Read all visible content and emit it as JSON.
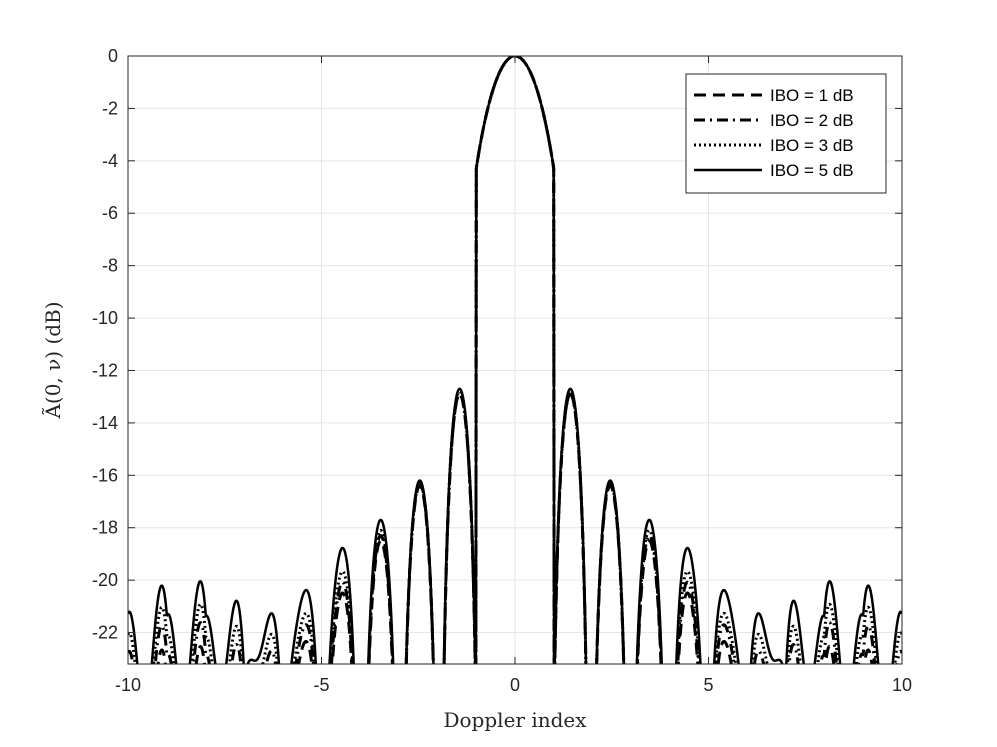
{
  "chart_data": {
    "type": "line",
    "title": "",
    "xlabel": "Doppler index",
    "ylabel": "Ã(0, ν) (dB)",
    "xlim": [
      -10,
      10
    ],
    "ylim": [
      -23.2,
      0
    ],
    "xticks": [
      "-10",
      "-5",
      "0",
      "5",
      "10"
    ],
    "yticks": [
      "0",
      "-2",
      "-4",
      "-6",
      "-8",
      "-10",
      "-12",
      "-14",
      "-16",
      "-18",
      "-20",
      "-22"
    ],
    "grid": true,
    "legend_position": "top-right",
    "sidelobe_peaks_x": [
      1.43,
      2.46,
      3.47,
      4.48,
      5.48,
      6.49,
      7.49,
      8.49,
      9.5
    ],
    "series": [
      {
        "name": "IBO = 1 dB",
        "style": "dashed",
        "color": "#000000",
        "floor_db": -22.6,
        "peaks_y": [
          -12.9,
          -16.4,
          -18.5,
          -20.0,
          -20.9,
          -21.6,
          -22.1,
          -22.5,
          -22.8
        ]
      },
      {
        "name": "IBO = 2 dB",
        "style": "dashdot",
        "color": "#000000",
        "floor_db": -21.7,
        "peaks_y": [
          -12.9,
          -16.3,
          -18.3,
          -19.6,
          -20.3,
          -20.8,
          -21.2,
          -21.5,
          -21.7
        ]
      },
      {
        "name": "IBO = 3 dB",
        "style": "dotted",
        "color": "#000000",
        "floor_db": -21.0,
        "peaks_y": [
          -12.8,
          -16.3,
          -18.1,
          -19.2,
          -19.9,
          -20.2,
          -20.5,
          -20.8,
          -21.0
        ]
      },
      {
        "name": "IBO = 5 dB",
        "style": "solid",
        "color": "#000000",
        "floor_db": -20.2,
        "peaks_y": [
          -12.7,
          -16.2,
          -17.7,
          -18.3,
          -19.0,
          -19.4,
          -19.2,
          -19.5,
          -20.0
        ]
      }
    ]
  },
  "legend": {
    "entries": [
      "IBO = 1 dB",
      "IBO = 2 dB",
      "IBO = 3 dB",
      "IBO = 5 dB"
    ]
  }
}
